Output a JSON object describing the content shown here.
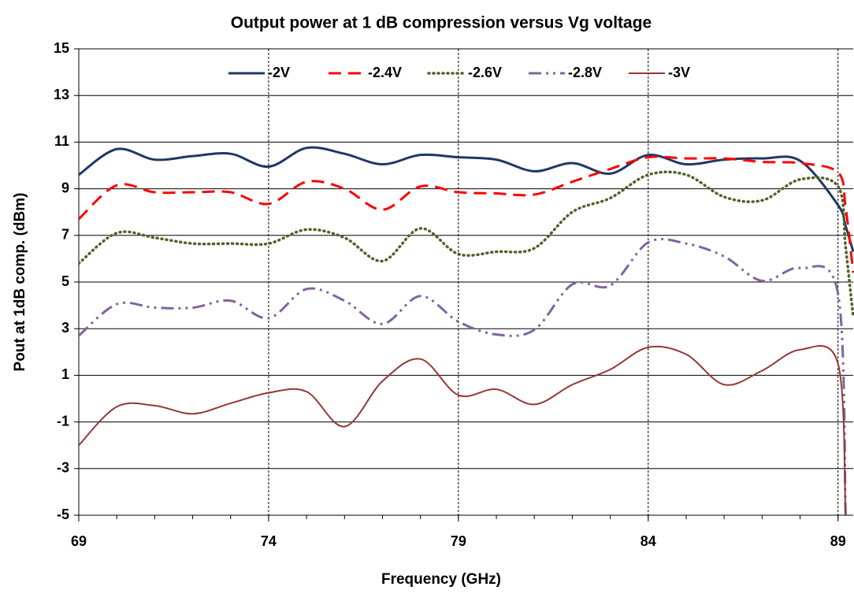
{
  "chart_data": {
    "type": "line",
    "title": "Output power at 1 dB compression versus Vg voltage",
    "x_label": "Frequency (GHz)",
    "y_label": "Pout at 1dB comp. (dBm)",
    "x": [
      69,
      70,
      71,
      72,
      73,
      74,
      75,
      76,
      77,
      78,
      79,
      80,
      81,
      82,
      83,
      84,
      85,
      86,
      87,
      88,
      89,
      89.2,
      89.4
    ],
    "series": [
      {
        "name": "-2V",
        "color": "#1f3864",
        "values": [
          9.6,
          10.7,
          10.25,
          10.4,
          10.5,
          9.95,
          10.75,
          10.5,
          10.05,
          10.45,
          10.35,
          10.25,
          9.75,
          10.1,
          9.65,
          10.45,
          10.05,
          10.25,
          10.3,
          10.2,
          8.3,
          7.4,
          6.3
        ]
      },
      {
        "name": "-2.4V",
        "color": "#ff0000",
        "values": [
          7.7,
          9.15,
          8.85,
          8.85,
          8.85,
          8.35,
          9.3,
          9.0,
          8.1,
          9.1,
          8.85,
          8.8,
          8.75,
          9.3,
          9.85,
          10.35,
          10.3,
          10.3,
          10.15,
          10.1,
          9.7,
          8.2,
          5.4
        ]
      },
      {
        "name": "-2.6V",
        "color": "#4f6228",
        "values": [
          5.8,
          7.1,
          6.9,
          6.65,
          6.65,
          6.65,
          7.25,
          6.9,
          5.9,
          7.3,
          6.2,
          6.3,
          6.45,
          8.0,
          8.6,
          9.6,
          9.6,
          8.65,
          8.5,
          9.4,
          9.1,
          6.5,
          3.5
        ]
      },
      {
        "name": "-2.8V",
        "color": "#8064a2",
        "values": [
          2.7,
          4.05,
          3.9,
          3.9,
          4.2,
          3.45,
          4.7,
          4.2,
          3.2,
          4.4,
          3.3,
          2.75,
          2.95,
          4.9,
          4.85,
          6.7,
          6.65,
          6.1,
          5.05,
          5.6,
          4.5,
          -5,
          null
        ]
      },
      {
        "name": "-3V",
        "color": "#953735",
        "values": [
          -2.0,
          -0.35,
          -0.3,
          -0.65,
          -0.2,
          0.25,
          0.3,
          -1.2,
          0.75,
          1.7,
          0.15,
          0.4,
          -0.25,
          0.6,
          1.25,
          2.2,
          1.9,
          0.6,
          1.2,
          2.1,
          1.5,
          -5,
          null
        ]
      }
    ],
    "xlim": [
      69,
      89.4
    ],
    "xticks": [
      69,
      74,
      79,
      84,
      89
    ],
    "ylim": [
      -5,
      15
    ],
    "yticks": [
      -5,
      -3,
      -1,
      1,
      3,
      5,
      7,
      9,
      11,
      13,
      15
    ],
    "grid": true,
    "legend": "top"
  }
}
